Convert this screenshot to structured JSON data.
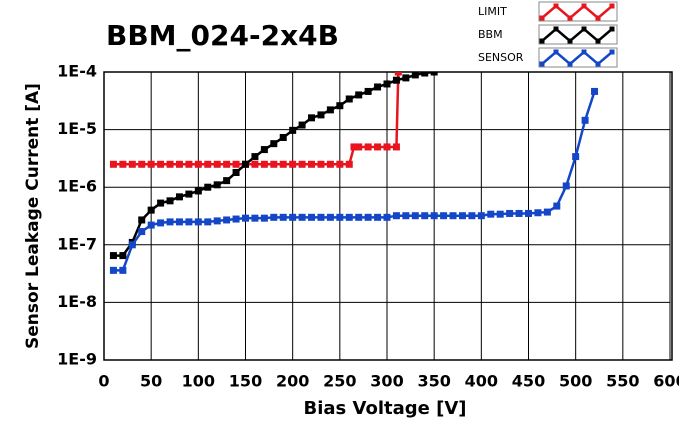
{
  "chart_data": {
    "type": "line",
    "title": "BBM_024-2x4B",
    "x_label": "Bias Voltage [V]",
    "y_label": "Sensor Leakage Current [A]",
    "log_y": true,
    "grid": true,
    "legend_position": "top-right",
    "xlim": [
      0,
      600
    ],
    "xticks": [
      0,
      50,
      100,
      150,
      200,
      250,
      300,
      350,
      400,
      450,
      500,
      550,
      600
    ],
    "ylim": [
      1e-09,
      0.0001
    ],
    "yticks": [
      {
        "value": 1e-09,
        "label": "1E-9"
      },
      {
        "value": 1e-08,
        "label": "1E-8"
      },
      {
        "value": 1e-07,
        "label": "1E-7"
      },
      {
        "value": 1e-06,
        "label": "1E-6"
      },
      {
        "value": 1e-05,
        "label": "1E-5"
      },
      {
        "value": 0.0001,
        "label": "1E-4"
      }
    ],
    "series": [
      {
        "name": "LIMIT",
        "color": "#e8141e",
        "x": [
          10,
          20,
          30,
          40,
          50,
          60,
          70,
          80,
          90,
          100,
          110,
          120,
          130,
          140,
          150,
          160,
          170,
          180,
          190,
          200,
          210,
          220,
          230,
          240,
          250,
          260,
          265,
          270,
          280,
          290,
          300,
          310,
          312
        ],
        "values": [
          2.5e-06,
          2.5e-06,
          2.5e-06,
          2.5e-06,
          2.5e-06,
          2.5e-06,
          2.5e-06,
          2.5e-06,
          2.5e-06,
          2.5e-06,
          2.5e-06,
          2.5e-06,
          2.5e-06,
          2.5e-06,
          2.5e-06,
          2.5e-06,
          2.5e-06,
          2.5e-06,
          2.5e-06,
          2.5e-06,
          2.5e-06,
          2.5e-06,
          2.5e-06,
          2.5e-06,
          2.5e-06,
          2.5e-06,
          5e-06,
          5e-06,
          5e-06,
          5e-06,
          5e-06,
          5e-06,
          0.0001
        ]
      },
      {
        "name": "BBM",
        "color": "#000000",
        "x": [
          10,
          20,
          30,
          40,
          50,
          60,
          70,
          80,
          90,
          100,
          110,
          120,
          130,
          140,
          150,
          160,
          170,
          180,
          190,
          200,
          210,
          220,
          230,
          240,
          250,
          260,
          270,
          280,
          290,
          300,
          310,
          320,
          330,
          340,
          350
        ],
        "values": [
          6.5e-08,
          6.5e-08,
          1.1e-07,
          2.7e-07,
          4e-07,
          5.3e-07,
          5.8e-07,
          6.8e-07,
          7.6e-07,
          8.6e-07,
          1e-06,
          1.1e-06,
          1.3e-06,
          1.8e-06,
          2.5e-06,
          3.4e-06,
          4.5e-06,
          5.7e-06,
          7.3e-06,
          9.7e-06,
          1.2e-05,
          1.6e-05,
          1.8e-05,
          2.2e-05,
          2.6e-05,
          3.4e-05,
          4e-05,
          4.6e-05,
          5.5e-05,
          6.2e-05,
          7.2e-05,
          7.9e-05,
          8.9e-05,
          9.6e-05,
          0.0001
        ]
      },
      {
        "name": "SENSOR",
        "color": "#1446c8",
        "x": [
          10,
          20,
          30,
          40,
          50,
          60,
          70,
          80,
          90,
          100,
          110,
          120,
          130,
          140,
          150,
          160,
          170,
          180,
          190,
          200,
          210,
          220,
          230,
          240,
          250,
          260,
          270,
          280,
          290,
          300,
          310,
          320,
          330,
          340,
          350,
          360,
          370,
          380,
          390,
          400,
          410,
          420,
          430,
          440,
          450,
          460,
          470,
          480,
          490,
          500,
          510,
          520
        ],
        "values": [
          3.6e-08,
          3.6e-08,
          1e-07,
          1.7e-07,
          2.2e-07,
          2.4e-07,
          2.5e-07,
          2.5e-07,
          2.5e-07,
          2.5e-07,
          2.5e-07,
          2.6e-07,
          2.7e-07,
          2.8e-07,
          2.9e-07,
          2.9e-07,
          2.9e-07,
          3e-07,
          3e-07,
          3e-07,
          3e-07,
          3e-07,
          3e-07,
          3e-07,
          3e-07,
          3e-07,
          3e-07,
          3e-07,
          3e-07,
          3e-07,
          3.2e-07,
          3.2e-07,
          3.2e-07,
          3.2e-07,
          3.2e-07,
          3.2e-07,
          3.2e-07,
          3.2e-07,
          3.2e-07,
          3.2e-07,
          3.4e-07,
          3.4e-07,
          3.5e-07,
          3.5e-07,
          3.5e-07,
          3.6e-07,
          3.7e-07,
          4.7e-07,
          1.05e-06,
          3.4e-06,
          1.45e-05,
          4.6e-05
        ]
      }
    ]
  }
}
